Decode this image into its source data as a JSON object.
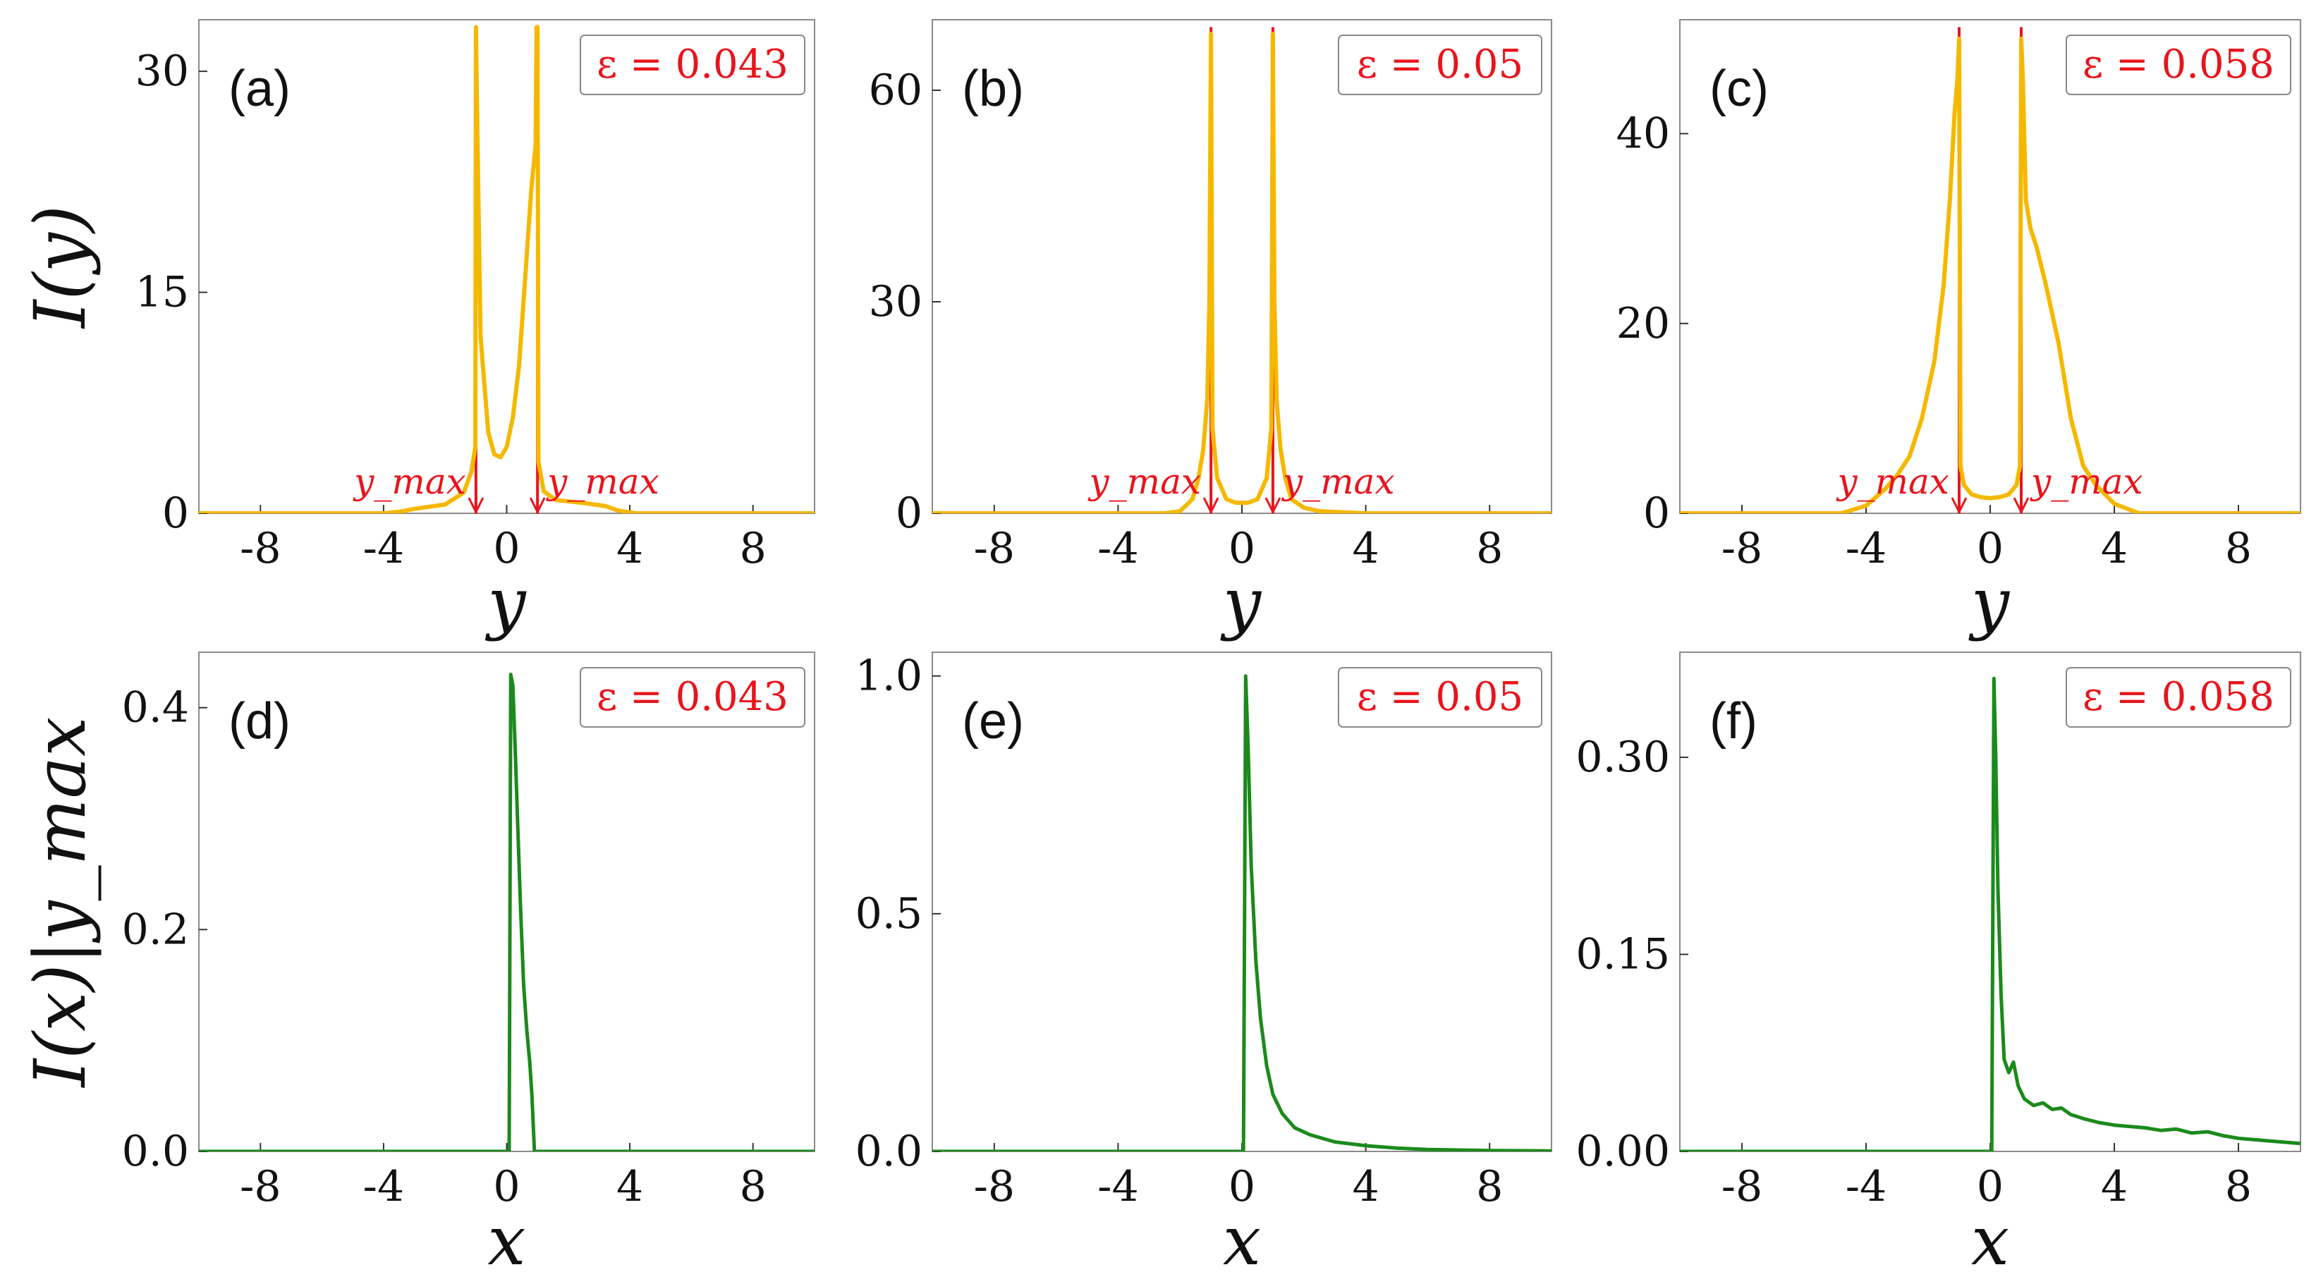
{
  "colors": {
    "intensity_y": "#f5b800",
    "intensity_x": "#1b8a1b",
    "peak_marker": "#e8141c",
    "frame": "#8a8a8a"
  },
  "ylabel_top": "I(y)",
  "ylabel_bottom": "I(x)|y_max",
  "chart_data": [
    {
      "id": "a",
      "type": "line",
      "panel_label": "(a)",
      "legend_text": "ε = 0.043",
      "xlabel": "y",
      "ylabel": "I(y)",
      "xlim": [
        -10,
        10
      ],
      "ylim": [
        0,
        33.5
      ],
      "xticks": [
        -8,
        -4,
        0,
        4,
        8
      ],
      "xtick_labels": [
        "-8",
        "-4",
        "0",
        "4",
        "8"
      ],
      "yticks": [
        0,
        15,
        30
      ],
      "ytick_labels": [
        "0",
        "15",
        "30"
      ],
      "series": [
        {
          "name": "I(y)",
          "x": [
            -10,
            -4,
            -3.5,
            -3,
            -2,
            -1.4,
            -1.15,
            -1.02,
            -1.0,
            -0.97,
            -0.85,
            -0.6,
            -0.4,
            -0.2,
            0,
            0.2,
            0.4,
            0.6,
            0.8,
            0.94,
            0.97,
            1.0,
            1.03,
            1.2,
            1.6,
            2.5,
            3.2,
            3.6,
            4.2,
            10
          ],
          "y": [
            0,
            0,
            0.1,
            0.3,
            0.6,
            1.4,
            2.8,
            4.5,
            33,
            28,
            12,
            5.5,
            4,
            3.8,
            4.5,
            6.5,
            10,
            16,
            22,
            25,
            33,
            33,
            3.5,
            1.5,
            0.9,
            0.7,
            0.5,
            0.2,
            0,
            0
          ]
        }
      ],
      "markers": [
        {
          "x": -1.0,
          "label": "y_max"
        },
        {
          "x": 1.0,
          "label": "y_max"
        }
      ]
    },
    {
      "id": "b",
      "type": "line",
      "panel_label": "(b)",
      "legend_text": "ε = 0.05",
      "xlabel": "y",
      "ylabel": "I(y)",
      "xlim": [
        -10,
        10
      ],
      "ylim": [
        0,
        70
      ],
      "xticks": [
        -8,
        -4,
        0,
        4,
        8
      ],
      "xtick_labels": [
        "-8",
        "-4",
        "0",
        "4",
        "8"
      ],
      "yticks": [
        0,
        30,
        60
      ],
      "ytick_labels": [
        "0",
        "30",
        "60"
      ],
      "series": [
        {
          "name": "I(y)",
          "x": [
            -10,
            -2.5,
            -2,
            -1.6,
            -1.4,
            -1.25,
            -1.12,
            -1.05,
            -1.0,
            -0.95,
            -0.8,
            -0.5,
            -0.2,
            0,
            0.2,
            0.5,
            0.8,
            0.95,
            1.0,
            1.05,
            1.12,
            1.25,
            1.4,
            1.6,
            2,
            2.5,
            4,
            10
          ],
          "y": [
            0,
            0,
            0.3,
            2,
            5,
            9,
            16,
            30,
            68,
            12,
            5,
            2,
            1.5,
            1.5,
            1.5,
            2,
            5,
            12,
            68,
            30,
            16,
            9,
            5,
            2,
            0.8,
            0.3,
            0,
            0
          ]
        }
      ],
      "markers": [
        {
          "x": -1.0,
          "label": "y_max"
        },
        {
          "x": 1.0,
          "label": "y_max"
        }
      ]
    },
    {
      "id": "c",
      "type": "line",
      "panel_label": "(c)",
      "legend_text": "ε = 0.058",
      "xlabel": "y",
      "ylabel": "I(y)",
      "xlim": [
        -10,
        10
      ],
      "ylim": [
        0,
        52
      ],
      "xticks": [
        -8,
        -4,
        0,
        4,
        8
      ],
      "xtick_labels": [
        "-8",
        "-4",
        "0",
        "4",
        "8"
      ],
      "yticks": [
        0,
        20,
        40
      ],
      "ytick_labels": [
        "0",
        "20",
        "40"
      ],
      "series": [
        {
          "name": "I(y)",
          "x": [
            -10,
            -4.8,
            -4,
            -3.4,
            -3,
            -2.6,
            -2.2,
            -1.8,
            -1.5,
            -1.3,
            -1.15,
            -1.05,
            -1.0,
            -0.96,
            -0.85,
            -0.6,
            -0.3,
            0,
            0.3,
            0.6,
            0.85,
            0.96,
            1.0,
            1.05,
            1.15,
            1.3,
            1.5,
            1.8,
            2.2,
            2.6,
            3,
            3.4,
            4,
            4.8,
            10
          ],
          "y": [
            0,
            0,
            0.8,
            2.5,
            4,
            6,
            10,
            16,
            24,
            33,
            42,
            46,
            50,
            5,
            3,
            2,
            1.7,
            1.6,
            1.7,
            2,
            3,
            5,
            50,
            46,
            33,
            30,
            28,
            24,
            18,
            10,
            5,
            3,
            1,
            0,
            0
          ]
        }
      ],
      "markers": [
        {
          "x": -1.0,
          "label": "y_max"
        },
        {
          "x": 1.0,
          "label": "y_max"
        }
      ]
    },
    {
      "id": "d",
      "type": "line",
      "panel_label": "(d)",
      "legend_text": "ε = 0.043",
      "xlabel": "x",
      "ylabel": "I(x)|y_max",
      "xlim": [
        -10,
        10
      ],
      "ylim": [
        0,
        0.45
      ],
      "xticks": [
        -8,
        -4,
        0,
        4,
        8
      ],
      "xtick_labels": [
        "-8",
        "-4",
        "0",
        "4",
        "8"
      ],
      "yticks": [
        0,
        0.2,
        0.4
      ],
      "ytick_labels": [
        "0.0",
        "0.2",
        "0.4"
      ],
      "series": [
        {
          "name": "I(x)",
          "x": [
            -10,
            0.08,
            0.13,
            0.2,
            0.28,
            0.35,
            0.45,
            0.55,
            0.65,
            0.75,
            0.82,
            0.9,
            10
          ],
          "y": [
            0,
            0,
            0.43,
            0.42,
            0.36,
            0.3,
            0.22,
            0.15,
            0.11,
            0.08,
            0.05,
            0,
            0
          ]
        }
      ]
    },
    {
      "id": "e",
      "type": "line",
      "panel_label": "(e)",
      "legend_text": "ε = 0.05",
      "xlabel": "x",
      "ylabel": "I(x)|y_max",
      "xlim": [
        -10,
        10
      ],
      "ylim": [
        0,
        1.05
      ],
      "xticks": [
        -8,
        -4,
        0,
        4,
        8
      ],
      "xtick_labels": [
        "-8",
        "-4",
        "0",
        "4",
        "8"
      ],
      "yticks": [
        0,
        0.5,
        1.0
      ],
      "ytick_labels": [
        "0.0",
        "0.5",
        "1.0"
      ],
      "series": [
        {
          "name": "I(x)",
          "x": [
            -10,
            0.05,
            0.12,
            0.2,
            0.3,
            0.45,
            0.6,
            0.8,
            1.0,
            1.3,
            1.7,
            2.2,
            3,
            4,
            5,
            6,
            8,
            10
          ],
          "y": [
            0,
            0,
            1.0,
            0.85,
            0.6,
            0.4,
            0.28,
            0.18,
            0.12,
            0.08,
            0.05,
            0.035,
            0.02,
            0.012,
            0.007,
            0.004,
            0.002,
            0.001
          ]
        }
      ]
    },
    {
      "id": "f",
      "type": "line",
      "panel_label": "(f)",
      "legend_text": "ε = 0.058",
      "xlabel": "x",
      "ylabel": "I(x)|y_max",
      "xlim": [
        -10,
        10
      ],
      "ylim": [
        0,
        0.38
      ],
      "xticks": [
        -8,
        -4,
        0,
        4,
        8
      ],
      "xtick_labels": [
        "-8",
        "-4",
        "0",
        "4",
        "8"
      ],
      "yticks": [
        0,
        0.15,
        0.3
      ],
      "ytick_labels": [
        "0.00",
        "0.15",
        "0.30"
      ],
      "series": [
        {
          "name": "I(x)",
          "x": [
            -10,
            0.05,
            0.12,
            0.18,
            0.25,
            0.35,
            0.45,
            0.6,
            0.75,
            0.9,
            1.1,
            1.4,
            1.7,
            2.0,
            2.3,
            2.6,
            3.0,
            3.5,
            4.0,
            4.5,
            5.0,
            5.5,
            6.0,
            6.5,
            7.0,
            7.5,
            8.0,
            9.0,
            10.0
          ],
          "y": [
            0,
            0,
            0.36,
            0.3,
            0.2,
            0.12,
            0.07,
            0.06,
            0.068,
            0.05,
            0.04,
            0.035,
            0.037,
            0.032,
            0.033,
            0.028,
            0.025,
            0.022,
            0.02,
            0.019,
            0.018,
            0.016,
            0.017,
            0.014,
            0.015,
            0.012,
            0.01,
            0.008,
            0.006
          ]
        }
      ]
    }
  ]
}
